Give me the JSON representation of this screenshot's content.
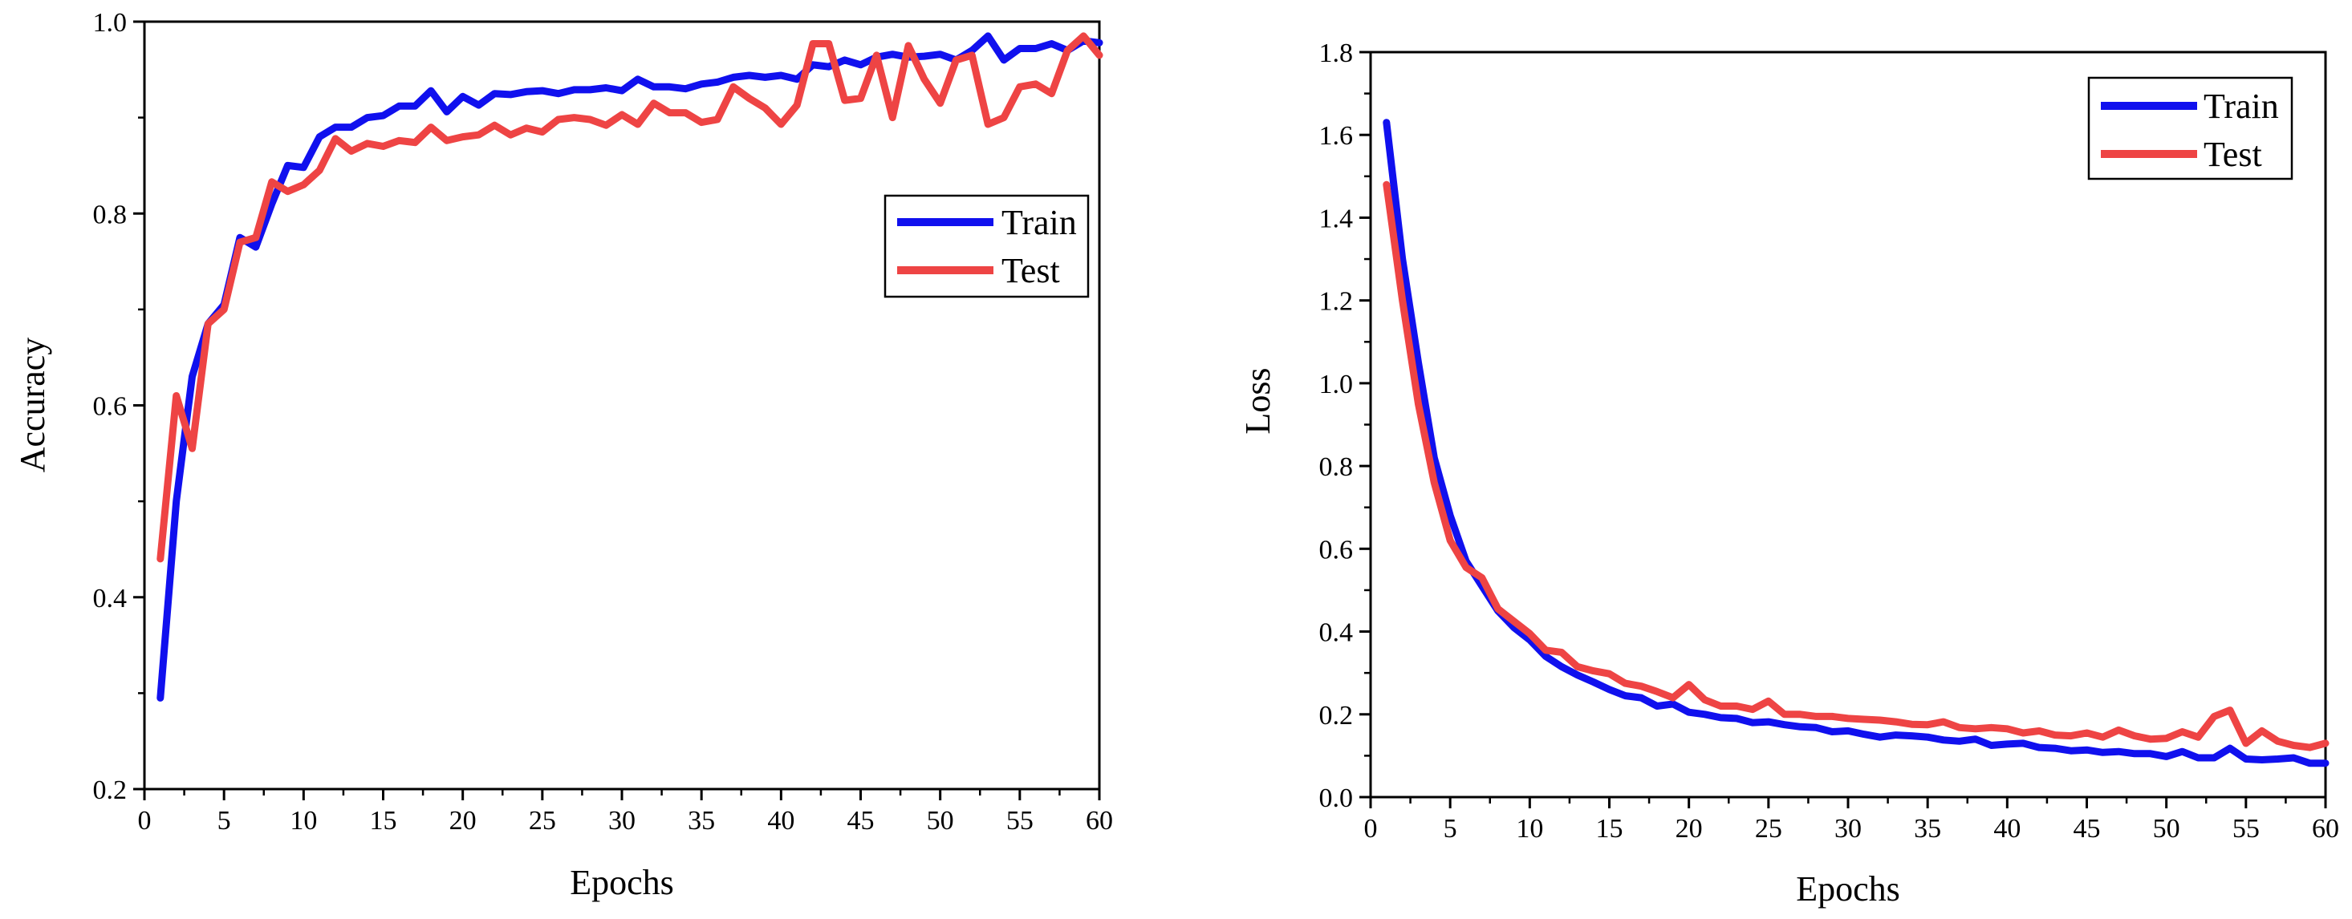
{
  "chart_data": [
    {
      "type": "line",
      "xlabel": "Epochs",
      "ylabel": "Accuracy",
      "xlim": [
        0,
        60
      ],
      "ylim": [
        0.2,
        1.0
      ],
      "xticks": [
        "0",
        "5",
        "10",
        "15",
        "20",
        "25",
        "30",
        "35",
        "40",
        "45",
        "50",
        "55",
        "60"
      ],
      "yticks": [
        "0.2",
        "0.4",
        "0.6",
        "0.8",
        "1.0"
      ],
      "legend_position": "right",
      "series": [
        {
          "name": "Train",
          "color": "#1010ee",
          "x": [
            1,
            2,
            3,
            4,
            5,
            6,
            7,
            8,
            9,
            10,
            11,
            12,
            13,
            14,
            15,
            16,
            17,
            18,
            19,
            20,
            21,
            22,
            23,
            24,
            25,
            26,
            27,
            28,
            29,
            30,
            31,
            32,
            33,
            34,
            35,
            36,
            37,
            38,
            39,
            40,
            41,
            42,
            43,
            44,
            45,
            46,
            47,
            48,
            49,
            50,
            51,
            52,
            53,
            54,
            55,
            56,
            57,
            58,
            59,
            60
          ],
          "values": [
            0.295,
            0.5,
            0.63,
            0.685,
            0.705,
            0.775,
            0.765,
            0.81,
            0.85,
            0.848,
            0.88,
            0.89,
            0.89,
            0.9,
            0.902,
            0.912,
            0.912,
            0.928,
            0.906,
            0.922,
            0.913,
            0.925,
            0.924,
            0.927,
            0.928,
            0.925,
            0.929,
            0.929,
            0.931,
            0.928,
            0.94,
            0.932,
            0.932,
            0.93,
            0.935,
            0.937,
            0.942,
            0.944,
            0.942,
            0.944,
            0.94,
            0.955,
            0.953,
            0.96,
            0.955,
            0.963,
            0.966,
            0.963,
            0.964,
            0.966,
            0.96,
            0.97,
            0.985,
            0.96,
            0.972,
            0.972,
            0.977,
            0.97,
            0.98,
            0.978
          ]
        },
        {
          "name": "Test",
          "color": "#ee4444",
          "x": [
            1,
            2,
            3,
            4,
            5,
            6,
            7,
            8,
            9,
            10,
            11,
            12,
            13,
            14,
            15,
            16,
            17,
            18,
            19,
            20,
            21,
            22,
            23,
            24,
            25,
            26,
            27,
            28,
            29,
            30,
            31,
            32,
            33,
            34,
            35,
            36,
            37,
            38,
            39,
            40,
            41,
            42,
            43,
            44,
            45,
            46,
            47,
            48,
            49,
            50,
            51,
            52,
            53,
            54,
            55,
            56,
            57,
            58,
            59,
            60
          ],
          "values": [
            0.44,
            0.61,
            0.555,
            0.685,
            0.7,
            0.77,
            0.775,
            0.833,
            0.823,
            0.83,
            0.845,
            0.878,
            0.865,
            0.873,
            0.87,
            0.876,
            0.874,
            0.89,
            0.876,
            0.88,
            0.882,
            0.892,
            0.882,
            0.889,
            0.885,
            0.898,
            0.9,
            0.898,
            0.892,
            0.903,
            0.893,
            0.915,
            0.905,
            0.905,
            0.895,
            0.898,
            0.932,
            0.92,
            0.91,
            0.893,
            0.913,
            0.977,
            0.977,
            0.918,
            0.92,
            0.965,
            0.9,
            0.975,
            0.94,
            0.915,
            0.96,
            0.965,
            0.893,
            0.9,
            0.932,
            0.935,
            0.925,
            0.97,
            0.985,
            0.965
          ]
        }
      ]
    },
    {
      "type": "line",
      "xlabel": "Epochs",
      "ylabel": "Loss",
      "xlim": [
        0,
        60
      ],
      "ylim": [
        0.0,
        1.8
      ],
      "xticks": [
        "0",
        "5",
        "10",
        "15",
        "20",
        "25",
        "30",
        "35",
        "40",
        "45",
        "50",
        "55",
        "60"
      ],
      "yticks": [
        "0.0",
        "0.2",
        "0.4",
        "0.6",
        "0.8",
        "1.0",
        "1.2",
        "1.4",
        "1.6",
        "1.8"
      ],
      "legend_position": "top-right",
      "series": [
        {
          "name": "Train",
          "color": "#1010ee",
          "x": [
            1,
            2,
            3,
            4,
            5,
            6,
            7,
            8,
            9,
            10,
            11,
            12,
            13,
            14,
            15,
            16,
            17,
            18,
            19,
            20,
            21,
            22,
            23,
            24,
            25,
            26,
            27,
            28,
            29,
            30,
            31,
            32,
            33,
            34,
            35,
            36,
            37,
            38,
            39,
            40,
            41,
            42,
            43,
            44,
            45,
            46,
            47,
            48,
            49,
            50,
            51,
            52,
            53,
            54,
            55,
            56,
            57,
            58,
            59,
            60
          ],
          "values": [
            1.63,
            1.3,
            1.05,
            0.82,
            0.68,
            0.57,
            0.51,
            0.45,
            0.41,
            0.38,
            0.34,
            0.315,
            0.295,
            0.278,
            0.26,
            0.245,
            0.24,
            0.22,
            0.225,
            0.205,
            0.2,
            0.192,
            0.19,
            0.18,
            0.182,
            0.175,
            0.17,
            0.168,
            0.158,
            0.16,
            0.152,
            0.145,
            0.15,
            0.148,
            0.145,
            0.138,
            0.135,
            0.14,
            0.125,
            0.128,
            0.13,
            0.12,
            0.118,
            0.112,
            0.114,
            0.108,
            0.11,
            0.105,
            0.105,
            0.098,
            0.11,
            0.095,
            0.095,
            0.118,
            0.092,
            0.09,
            0.092,
            0.095,
            0.082,
            0.082
          ]
        },
        {
          "name": "Test",
          "color": "#ee4444",
          "x": [
            1,
            2,
            3,
            4,
            5,
            6,
            7,
            8,
            9,
            10,
            11,
            12,
            13,
            14,
            15,
            16,
            17,
            18,
            19,
            20,
            21,
            22,
            23,
            24,
            25,
            26,
            27,
            28,
            29,
            30,
            31,
            32,
            33,
            34,
            35,
            36,
            37,
            38,
            39,
            40,
            41,
            42,
            43,
            44,
            45,
            46,
            47,
            48,
            49,
            50,
            51,
            52,
            53,
            54,
            55,
            56,
            57,
            58,
            59,
            60
          ],
          "values": [
            1.48,
            1.2,
            0.95,
            0.76,
            0.62,
            0.555,
            0.53,
            0.455,
            0.425,
            0.395,
            0.355,
            0.35,
            0.315,
            0.305,
            0.298,
            0.275,
            0.268,
            0.255,
            0.24,
            0.272,
            0.235,
            0.22,
            0.22,
            0.212,
            0.232,
            0.2,
            0.2,
            0.195,
            0.195,
            0.19,
            0.188,
            0.186,
            0.182,
            0.176,
            0.175,
            0.182,
            0.168,
            0.165,
            0.168,
            0.165,
            0.155,
            0.16,
            0.15,
            0.148,
            0.155,
            0.145,
            0.162,
            0.148,
            0.14,
            0.142,
            0.158,
            0.145,
            0.195,
            0.21,
            0.13,
            0.16,
            0.135,
            0.125,
            0.12,
            0.13
          ]
        }
      ]
    }
  ]
}
